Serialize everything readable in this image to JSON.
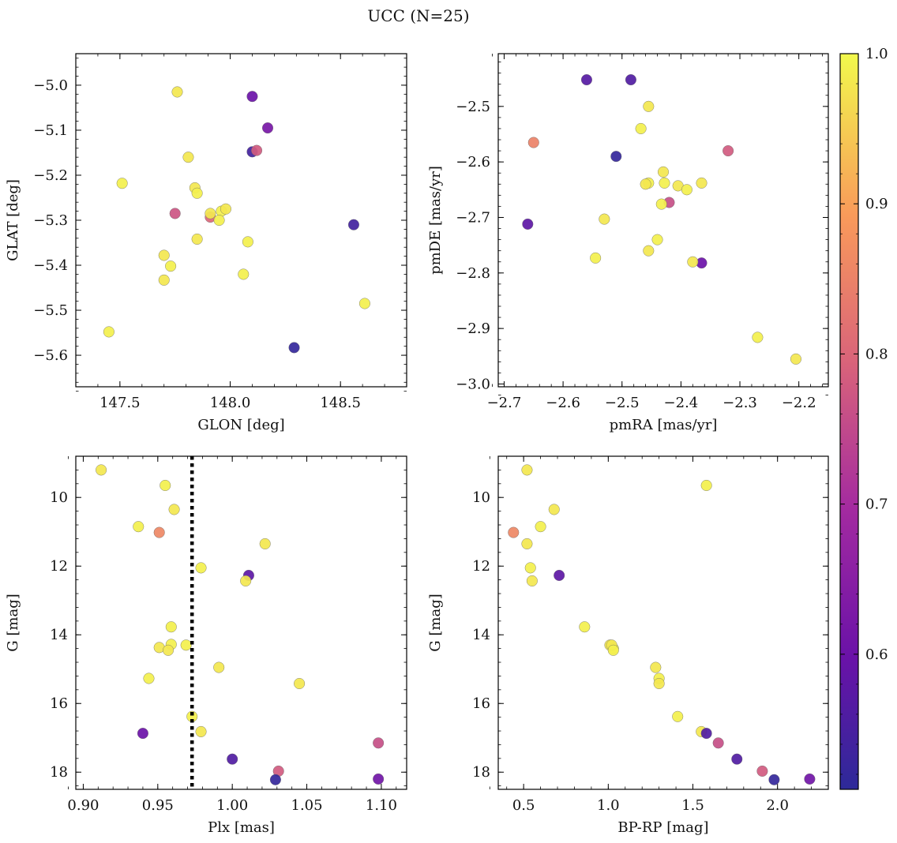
{
  "figure": {
    "title": "UCC (N=25)"
  },
  "colorbar": {
    "min": 0.51,
    "max": 1.0,
    "ticks": [
      0.6,
      0.7,
      0.8,
      0.9,
      1.0
    ],
    "tick_labels": [
      "0.6",
      "0.7",
      "0.8",
      "0.9",
      "1.0"
    ],
    "colormap": "plasma"
  },
  "chart_data": [
    {
      "type": "scatter",
      "id": "spatial",
      "xlabel": "GLON [deg]",
      "ylabel": "GLAT [deg]",
      "xlim": [
        147.3,
        148.8
      ],
      "ylim": [
        -5.67,
        -4.93
      ],
      "y_inverted": false,
      "xticks": [
        147.5,
        148.0,
        148.5
      ],
      "xtick_labels": [
        "147.5",
        "148.0",
        "148.5"
      ],
      "yticks": [
        -5.6,
        -5.5,
        -5.4,
        -5.3,
        -5.2,
        -5.1,
        -5.0
      ],
      "ytick_labels": [
        "−5.6",
        "−5.5",
        "−5.4",
        "−5.3",
        "−5.2",
        "−5.1",
        "−5.0"
      ],
      "vline": null,
      "points": [
        {
          "x": 148.1,
          "y": -5.025,
          "c": 0.6
        },
        {
          "x": 148.17,
          "y": -5.095,
          "c": 0.62
        },
        {
          "x": 148.1,
          "y": -5.148,
          "c": 0.54
        },
        {
          "x": 148.12,
          "y": -5.145,
          "c": 0.78
        },
        {
          "x": 148.56,
          "y": -5.31,
          "c": 0.54
        },
        {
          "x": 148.29,
          "y": -5.583,
          "c": 0.52
        },
        {
          "x": 147.75,
          "y": -5.285,
          "c": 0.77
        },
        {
          "x": 147.91,
          "y": -5.293,
          "c": 0.8
        },
        {
          "x": 147.76,
          "y": -5.015,
          "c": 0.98
        },
        {
          "x": 147.81,
          "y": -5.16,
          "c": 0.98
        },
        {
          "x": 147.51,
          "y": -5.218,
          "c": 0.99
        },
        {
          "x": 147.84,
          "y": -5.228,
          "c": 0.98
        },
        {
          "x": 147.85,
          "y": -5.24,
          "c": 0.99
        },
        {
          "x": 147.91,
          "y": -5.285,
          "c": 0.98
        },
        {
          "x": 147.96,
          "y": -5.28,
          "c": 0.99
        },
        {
          "x": 147.98,
          "y": -5.275,
          "c": 0.98
        },
        {
          "x": 147.95,
          "y": -5.3,
          "c": 0.99
        },
        {
          "x": 147.85,
          "y": -5.342,
          "c": 0.98
        },
        {
          "x": 148.08,
          "y": -5.348,
          "c": 0.99
        },
        {
          "x": 147.7,
          "y": -5.378,
          "c": 0.98
        },
        {
          "x": 147.73,
          "y": -5.402,
          "c": 0.99
        },
        {
          "x": 147.7,
          "y": -5.433,
          "c": 0.98
        },
        {
          "x": 148.06,
          "y": -5.42,
          "c": 0.99
        },
        {
          "x": 148.61,
          "y": -5.485,
          "c": 0.99
        },
        {
          "x": 147.45,
          "y": -5.548,
          "c": 0.99
        }
      ]
    },
    {
      "type": "scatter",
      "id": "proper-motion",
      "xlabel": "pmRA [mas/yr]",
      "ylabel": "pmDE [mas/yr]",
      "xlim": [
        -2.71,
        -2.15
      ],
      "ylim": [
        -3.005,
        -2.405
      ],
      "y_inverted": false,
      "xticks": [
        -2.7,
        -2.6,
        -2.5,
        -2.4,
        -2.3,
        -2.2
      ],
      "xtick_labels": [
        "−2.7",
        "−2.6",
        "−2.5",
        "−2.4",
        "−2.3",
        "−2.2"
      ],
      "yticks": [
        -3.0,
        -2.9,
        -2.8,
        -2.7,
        -2.6,
        -2.5
      ],
      "ytick_labels": [
        "−3.0",
        "−2.9",
        "−2.8",
        "−2.7",
        "−2.6",
        "−2.5"
      ],
      "vline": null,
      "points": [
        {
          "x": -2.56,
          "y": -2.452,
          "c": 0.57
        },
        {
          "x": -2.485,
          "y": -2.452,
          "c": 0.56
        },
        {
          "x": -2.51,
          "y": -2.59,
          "c": 0.52
        },
        {
          "x": -2.66,
          "y": -2.712,
          "c": 0.58
        },
        {
          "x": -2.365,
          "y": -2.782,
          "c": 0.6
        },
        {
          "x": -2.65,
          "y": -2.565,
          "c": 0.85
        },
        {
          "x": -2.32,
          "y": -2.58,
          "c": 0.78
        },
        {
          "x": -2.42,
          "y": -2.673,
          "c": 0.76
        },
        {
          "x": -2.455,
          "y": -2.5,
          "c": 0.98
        },
        {
          "x": -2.468,
          "y": -2.54,
          "c": 0.99
        },
        {
          "x": -2.43,
          "y": -2.618,
          "c": 0.98
        },
        {
          "x": -2.455,
          "y": -2.638,
          "c": 0.99
        },
        {
          "x": -2.46,
          "y": -2.64,
          "c": 0.98
        },
        {
          "x": -2.428,
          "y": -2.638,
          "c": 0.99
        },
        {
          "x": -2.405,
          "y": -2.643,
          "c": 0.98
        },
        {
          "x": -2.39,
          "y": -2.65,
          "c": 0.99
        },
        {
          "x": -2.365,
          "y": -2.638,
          "c": 0.98
        },
        {
          "x": -2.433,
          "y": -2.676,
          "c": 0.99
        },
        {
          "x": -2.53,
          "y": -2.703,
          "c": 0.98
        },
        {
          "x": -2.44,
          "y": -2.74,
          "c": 0.99
        },
        {
          "x": -2.455,
          "y": -2.76,
          "c": 0.98
        },
        {
          "x": -2.545,
          "y": -2.773,
          "c": 0.99
        },
        {
          "x": -2.38,
          "y": -2.78,
          "c": 0.98
        },
        {
          "x": -2.27,
          "y": -2.916,
          "c": 0.99
        },
        {
          "x": -2.205,
          "y": -2.955,
          "c": 0.98
        }
      ]
    },
    {
      "type": "scatter",
      "id": "parallax-magnitude",
      "xlabel": "Plx [mas]",
      "ylabel": "G [mag]",
      "xlim": [
        0.895,
        1.117
      ],
      "ylim": [
        18.5,
        8.8
      ],
      "y_inverted": true,
      "xticks": [
        0.9,
        0.95,
        1.0,
        1.05,
        1.1
      ],
      "xtick_labels": [
        "0.90",
        "0.95",
        "1.00",
        "1.05",
        "1.10"
      ],
      "yticks": [
        10,
        12,
        14,
        16,
        18
      ],
      "ytick_labels": [
        "10",
        "12",
        "14",
        "16",
        "18"
      ],
      "vline": 0.973,
      "points": [
        {
          "x": 0.912,
          "y": 9.2,
          "c": 0.98
        },
        {
          "x": 0.955,
          "y": 9.65,
          "c": 0.99
        },
        {
          "x": 0.961,
          "y": 10.35,
          "c": 0.98
        },
        {
          "x": 0.937,
          "y": 10.85,
          "c": 0.99
        },
        {
          "x": 0.951,
          "y": 11.02,
          "c": 0.86
        },
        {
          "x": 1.022,
          "y": 11.35,
          "c": 0.98
        },
        {
          "x": 0.979,
          "y": 12.05,
          "c": 0.99
        },
        {
          "x": 1.011,
          "y": 12.27,
          "c": 0.58
        },
        {
          "x": 1.009,
          "y": 12.43,
          "c": 0.98
        },
        {
          "x": 0.959,
          "y": 13.77,
          "c": 0.99
        },
        {
          "x": 0.951,
          "y": 14.37,
          "c": 0.98
        },
        {
          "x": 0.959,
          "y": 14.28,
          "c": 0.99
        },
        {
          "x": 0.957,
          "y": 14.45,
          "c": 0.98
        },
        {
          "x": 0.969,
          "y": 14.3,
          "c": 0.99
        },
        {
          "x": 0.991,
          "y": 14.95,
          "c": 0.98
        },
        {
          "x": 0.944,
          "y": 15.27,
          "c": 0.99
        },
        {
          "x": 1.045,
          "y": 15.42,
          "c": 0.98
        },
        {
          "x": 0.973,
          "y": 16.38,
          "c": 0.99
        },
        {
          "x": 0.979,
          "y": 16.82,
          "c": 0.98
        },
        {
          "x": 0.94,
          "y": 16.87,
          "c": 0.6
        },
        {
          "x": 1.098,
          "y": 17.15,
          "c": 0.76
        },
        {
          "x": 1.0,
          "y": 17.62,
          "c": 0.56
        },
        {
          "x": 1.031,
          "y": 17.97,
          "c": 0.78
        },
        {
          "x": 1.029,
          "y": 18.22,
          "c": 0.52
        },
        {
          "x": 1.098,
          "y": 18.2,
          "c": 0.61
        }
      ]
    },
    {
      "type": "scatter",
      "id": "color-magnitude",
      "xlabel": "BP-RP [mag]",
      "ylabel": "G [mag]",
      "xlim": [
        0.35,
        2.3
      ],
      "ylim": [
        18.5,
        8.8
      ],
      "y_inverted": true,
      "xticks": [
        0.5,
        1.0,
        1.5,
        2.0
      ],
      "xtick_labels": [
        "0.5",
        "1.0",
        "1.5",
        "2.0"
      ],
      "yticks": [
        10,
        12,
        14,
        16,
        18
      ],
      "ytick_labels": [
        "10",
        "12",
        "14",
        "16",
        "18"
      ],
      "vline": null,
      "points": [
        {
          "x": 0.52,
          "y": 9.2,
          "c": 0.98
        },
        {
          "x": 1.58,
          "y": 9.65,
          "c": 0.99
        },
        {
          "x": 0.68,
          "y": 10.35,
          "c": 0.98
        },
        {
          "x": 0.6,
          "y": 10.85,
          "c": 0.99
        },
        {
          "x": 0.44,
          "y": 11.02,
          "c": 0.86
        },
        {
          "x": 0.52,
          "y": 11.35,
          "c": 0.98
        },
        {
          "x": 0.54,
          "y": 12.05,
          "c": 0.99
        },
        {
          "x": 0.71,
          "y": 12.27,
          "c": 0.58
        },
        {
          "x": 0.55,
          "y": 12.43,
          "c": 0.98
        },
        {
          "x": 0.86,
          "y": 13.77,
          "c": 0.99
        },
        {
          "x": 1.01,
          "y": 14.3,
          "c": 0.98
        },
        {
          "x": 1.03,
          "y": 14.4,
          "c": 0.99
        },
        {
          "x": 1.02,
          "y": 14.3,
          "c": 0.98
        },
        {
          "x": 1.03,
          "y": 14.45,
          "c": 0.99
        },
        {
          "x": 1.28,
          "y": 14.95,
          "c": 0.98
        },
        {
          "x": 1.3,
          "y": 15.27,
          "c": 0.99
        },
        {
          "x": 1.3,
          "y": 15.42,
          "c": 0.98
        },
        {
          "x": 1.41,
          "y": 16.38,
          "c": 0.99
        },
        {
          "x": 1.55,
          "y": 16.82,
          "c": 0.98
        },
        {
          "x": 1.58,
          "y": 16.87,
          "c": 0.56
        },
        {
          "x": 1.65,
          "y": 17.15,
          "c": 0.76
        },
        {
          "x": 1.76,
          "y": 17.62,
          "c": 0.56
        },
        {
          "x": 1.91,
          "y": 17.97,
          "c": 0.78
        },
        {
          "x": 1.98,
          "y": 18.22,
          "c": 0.52
        },
        {
          "x": 2.19,
          "y": 18.2,
          "c": 0.61
        }
      ]
    }
  ]
}
